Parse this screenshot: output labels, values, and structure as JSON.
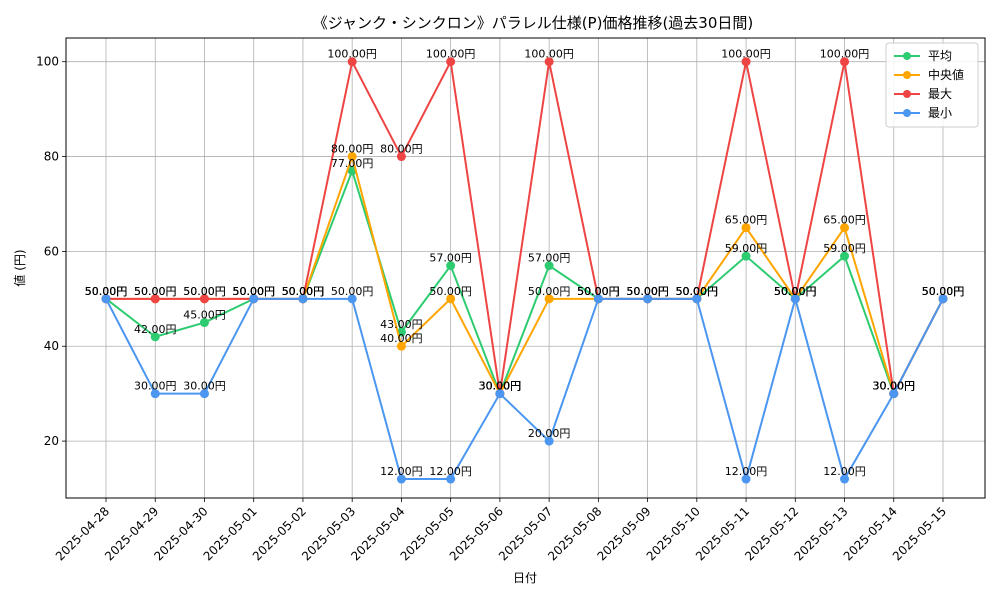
{
  "chart_data": {
    "type": "line",
    "title": "《ジャンク・シンクロン》パラレル仕様(P)価格推移(過去30日間)",
    "xlabel": "日付",
    "ylabel": "値 (円)",
    "ylim": [
      8,
      105
    ],
    "yticks": [
      20,
      40,
      60,
      80,
      100
    ],
    "grid": true,
    "legend_position": "top-right",
    "label_suffix": "円",
    "categories": [
      "2025-04-28",
      "2025-04-29",
      "2025-04-30",
      "2025-05-01",
      "2025-05-02",
      "2025-05-03",
      "2025-05-04",
      "2025-05-05",
      "2025-05-06",
      "2025-05-07",
      "2025-05-08",
      "2025-05-09",
      "2025-05-10",
      "2025-05-11",
      "2025-05-12",
      "2025-05-13",
      "2025-05-14",
      "2025-05-15"
    ],
    "series": [
      {
        "name": "平均",
        "color": "#2ecc71",
        "values": [
          50,
          42,
          45,
          50,
          50,
          77,
          43,
          57,
          30,
          57,
          50,
          50,
          50,
          59,
          50,
          59,
          30,
          50
        ]
      },
      {
        "name": "中央値",
        "color": "#ffa500",
        "values": [
          50,
          50,
          50,
          50,
          50,
          80,
          40,
          50,
          30,
          50,
          50,
          50,
          50,
          65,
          50,
          65,
          30,
          50
        ]
      },
      {
        "name": "最大",
        "color": "#ef4444",
        "values": [
          50,
          50,
          50,
          50,
          50,
          100,
          80,
          100,
          30,
          100,
          50,
          50,
          50,
          100,
          50,
          100,
          30,
          50
        ]
      },
      {
        "name": "最小",
        "color": "#4a96f0",
        "values": [
          50,
          30,
          30,
          50,
          50,
          50,
          12,
          12,
          30,
          20,
          50,
          50,
          50,
          12,
          50,
          12,
          30,
          50
        ]
      }
    ]
  }
}
